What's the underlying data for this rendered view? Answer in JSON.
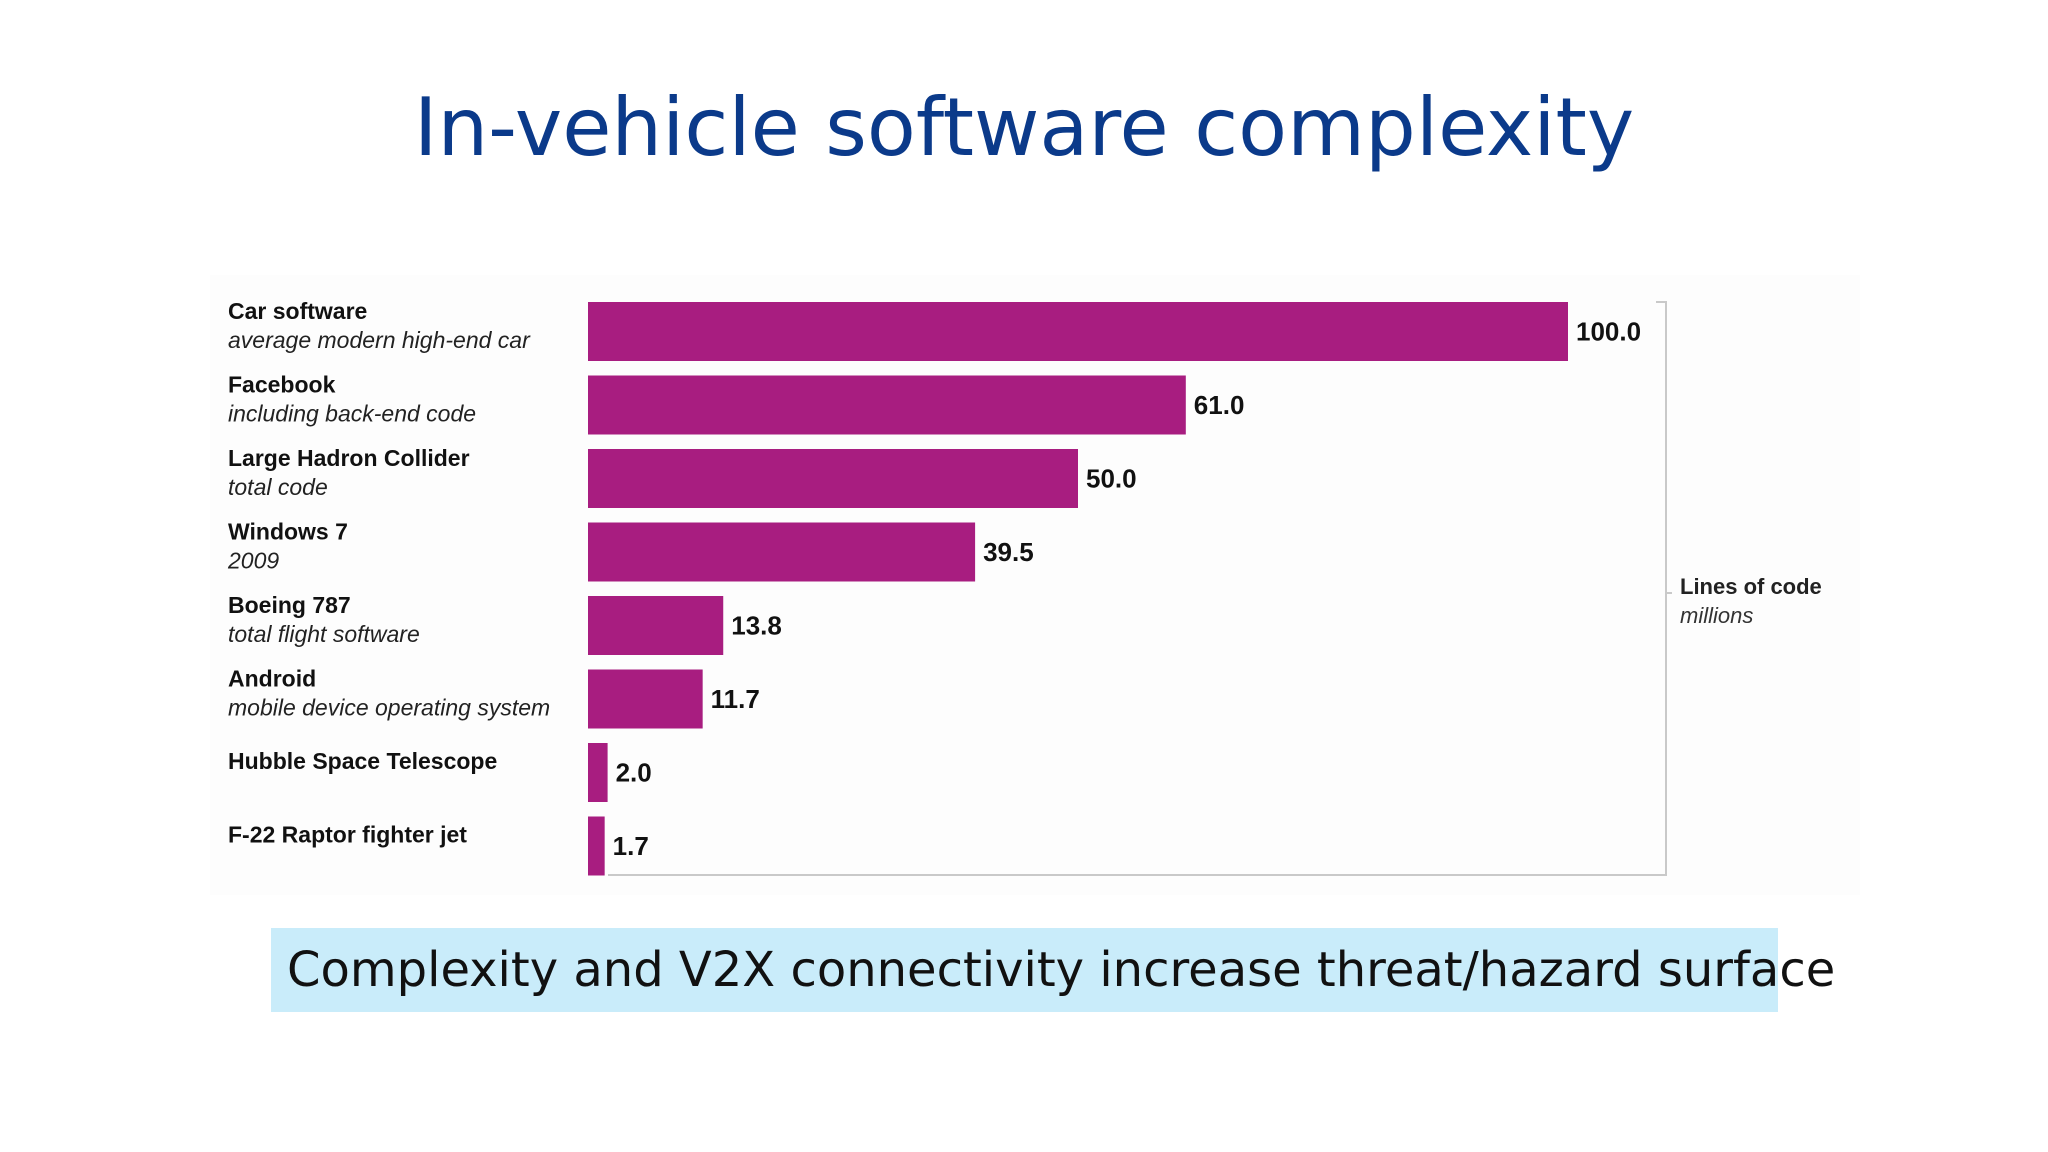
{
  "slide": {
    "title": "In-vehicle software complexity",
    "callout": "Complexity and V2X connectivity increase threat/hazard surface"
  },
  "chart_data": {
    "type": "bar",
    "orientation": "horizontal",
    "categories": [
      {
        "name": "Car software",
        "sub": "average modern high-end car",
        "value": 100.0,
        "label": "100.0"
      },
      {
        "name": "Facebook",
        "sub": "including back-end code",
        "value": 61.0,
        "label": "61.0"
      },
      {
        "name": "Large Hadron Collider",
        "sub": "total code",
        "value": 50.0,
        "label": "50.0"
      },
      {
        "name": "Windows 7",
        "sub": "2009",
        "value": 39.5,
        "label": "39.5"
      },
      {
        "name": "Boeing 787",
        "sub": "total flight software",
        "value": 13.8,
        "label": "13.8"
      },
      {
        "name": "Android",
        "sub": "mobile device operating system",
        "value": 11.7,
        "label": "11.7"
      },
      {
        "name": "Hubble Space Telescope",
        "sub": "",
        "value": 2.0,
        "label": "2.0"
      },
      {
        "name": "F-22 Raptor fighter jet",
        "sub": "",
        "value": 1.7,
        "label": "1.7"
      }
    ],
    "axis_label": "Lines of code",
    "axis_unit": "millions",
    "xlim": [
      0,
      110
    ],
    "bar_color": "#a81d80",
    "grid": false
  }
}
